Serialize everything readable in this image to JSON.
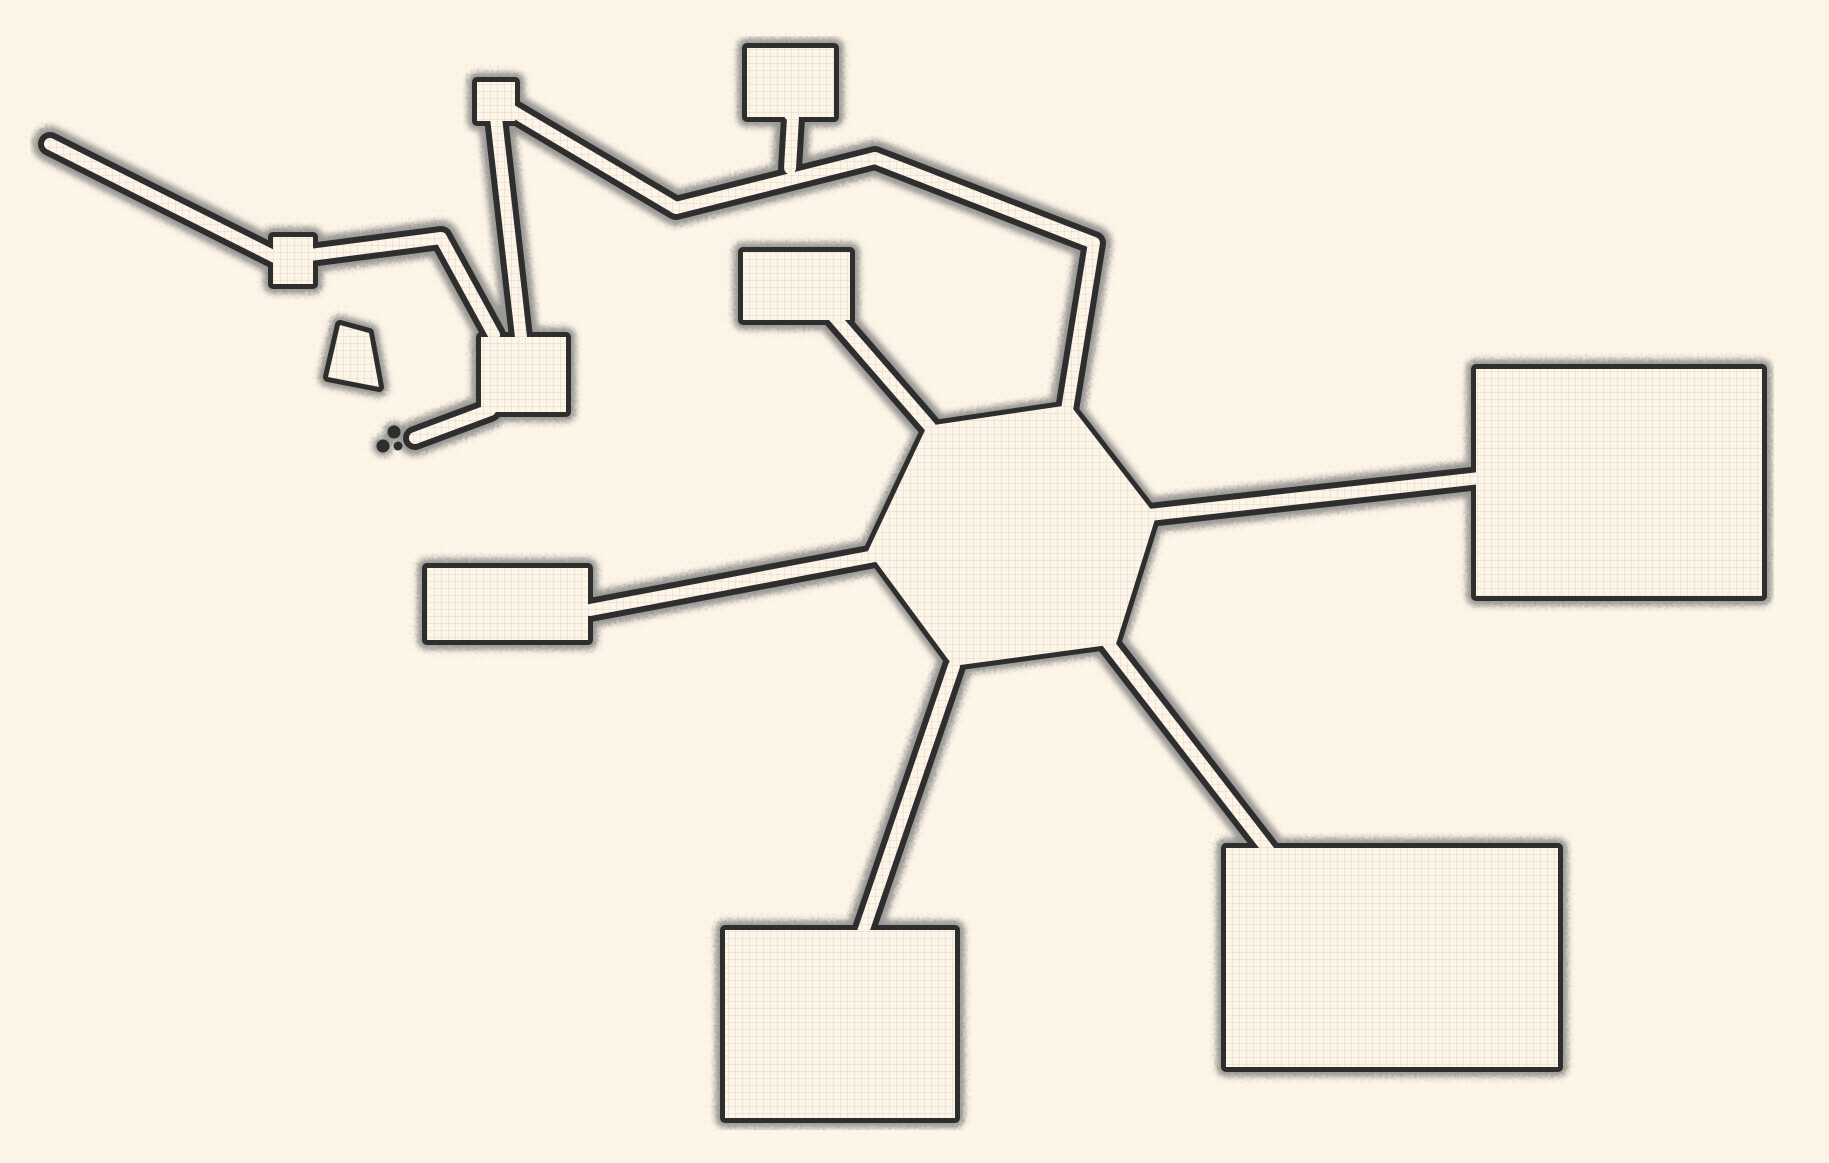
{
  "map": {
    "theme": {
      "paper": "#fdf5e8",
      "paper_dot": "#e9dcc6",
      "floor": "#fdf5e8",
      "floor_grid": "#d8cfc0",
      "wall": "#2e2e2e",
      "wall_shadow": "#8a8a8a"
    },
    "rooms": [
      {
        "id": "central-hub",
        "shape": "hexagon"
      },
      {
        "id": "east-room",
        "shape": "rectangle"
      },
      {
        "id": "southeast-room",
        "shape": "rectangle"
      },
      {
        "id": "south-room",
        "shape": "rectangle"
      },
      {
        "id": "west-room",
        "shape": "rectangle"
      },
      {
        "id": "north-small-room",
        "shape": "rectangle"
      },
      {
        "id": "top-alcove",
        "shape": "rectangle"
      },
      {
        "id": "northwest-room",
        "shape": "rectangle"
      },
      {
        "id": "north-junction",
        "shape": "square"
      },
      {
        "id": "west-junction",
        "shape": "square"
      },
      {
        "id": "rubble-chamber",
        "shape": "polygon"
      }
    ]
  }
}
